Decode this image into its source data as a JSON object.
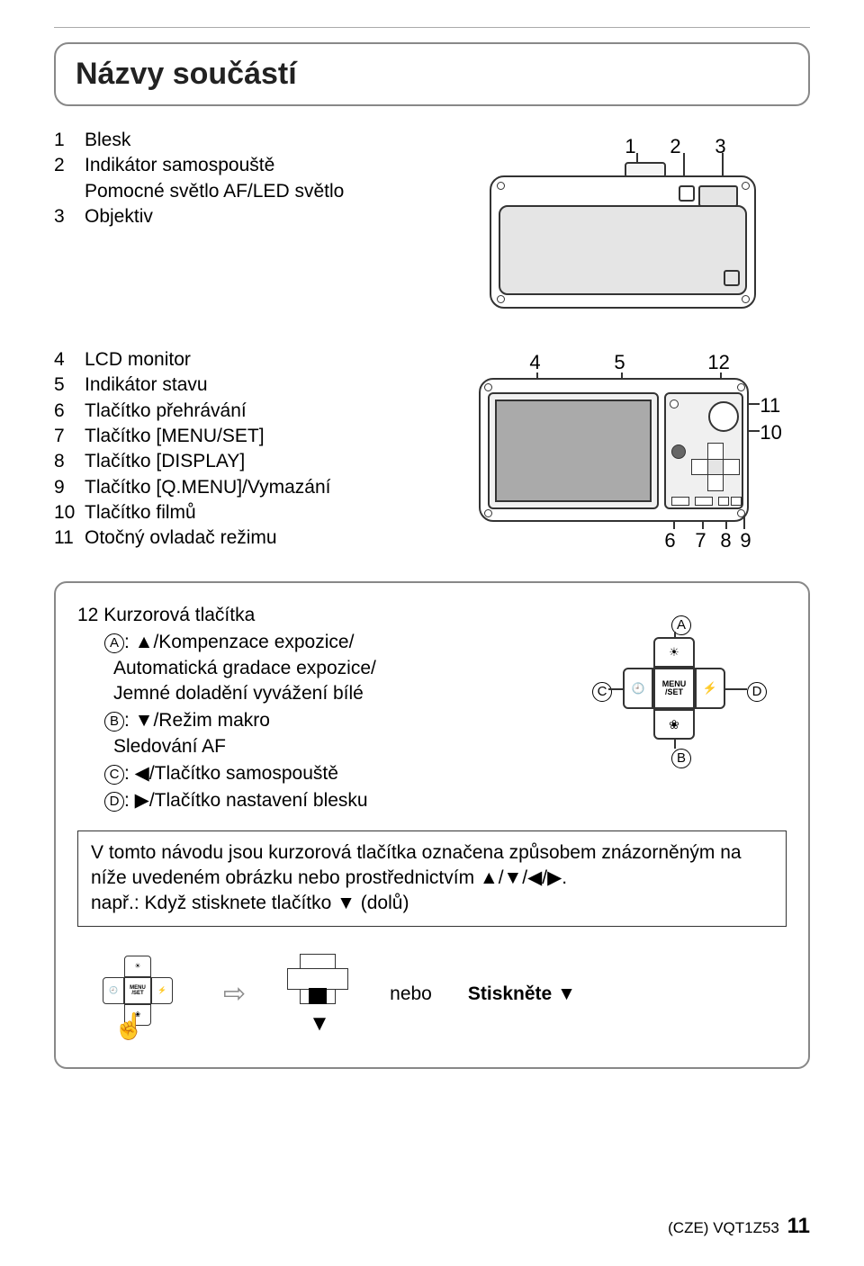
{
  "title": "Názvy součástí",
  "parts_a": [
    {
      "n": "1",
      "txt": "Blesk"
    },
    {
      "n": "2",
      "txt": "Indikátor samospouště\nPomocné světlo AF/LED světlo"
    },
    {
      "n": "3",
      "txt": "Objektiv"
    }
  ],
  "parts_b": [
    {
      "n": "4",
      "txt": "LCD monitor"
    },
    {
      "n": "5",
      "txt": "Indikátor stavu"
    },
    {
      "n": "6",
      "txt": "Tlačítko přehrávání"
    },
    {
      "n": "7",
      "txt": "Tlačítko [MENU/SET]"
    },
    {
      "n": "8",
      "txt": "Tlačítko [DISPLAY]"
    },
    {
      "n": "9",
      "txt": "Tlačítko [Q.MENU]/Vymazání"
    },
    {
      "n": "10",
      "txt": "Tlačítko filmů"
    },
    {
      "n": "11",
      "txt": "Otočný ovladač režimu"
    }
  ],
  "front_labels": {
    "l1": "1",
    "l2": "2",
    "l3": "3"
  },
  "back_labels": {
    "l4": "4",
    "l5": "5",
    "l12": "12",
    "l11": "11",
    "l10": "10",
    "l6": "6",
    "l7": "7",
    "l8": "8",
    "l9": "9"
  },
  "cursor": {
    "heading_num": "12",
    "heading": "Kurzorová tlačítka",
    "A_head": ": ▲/Kompenzace expozice/",
    "A_sub1": "Automatická gradace expozice/",
    "A_sub2": "Jemné doladění vyvážení bílé",
    "B": ": ▼/Režim makro",
    "B_sub": "Sledování AF",
    "C": ": ◀/Tlačítko samospouště",
    "D": ": ▶/Tlačítko nastavení blesku",
    "dia_labels": {
      "A": "A",
      "B": "B",
      "C": "C",
      "D": "D"
    },
    "menu": "MENU",
    "set": "/SET"
  },
  "note": {
    "l1": "V tomto návodu jsou kurzorová tlačítka označena způsobem znázorněným na",
    "l2": "níže uvedeném obrázku nebo prostřednictvím ▲/▼/◀/▶.",
    "l3": "např.: Když stisknete tlačítko ▼ (dolů)"
  },
  "example": {
    "or": "nebo",
    "press": "Stiskněte ▼"
  },
  "footer": {
    "region": "(CZE)",
    "code": "VQT1Z53",
    "page": "11"
  }
}
